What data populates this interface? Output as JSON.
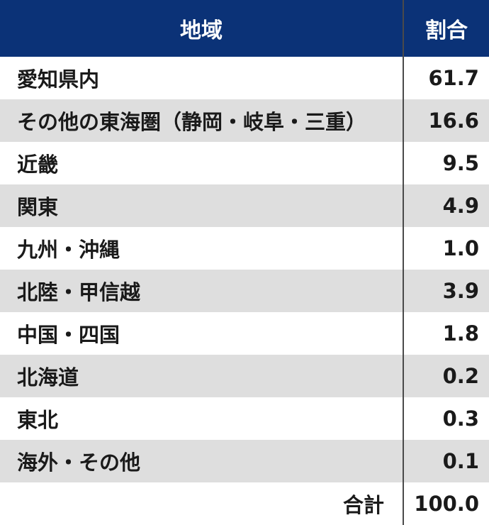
{
  "header": {
    "region": "地域",
    "share": "割合"
  },
  "rows": [
    {
      "region": "愛知県内",
      "share": "61.7"
    },
    {
      "region": "その他の東海圏（静岡・岐阜・三重）",
      "share": "16.6"
    },
    {
      "region": "近畿",
      "share": "9.5"
    },
    {
      "region": "関東",
      "share": "4.9"
    },
    {
      "region": "九州・沖縄",
      "share": "1.0"
    },
    {
      "region": "北陸・甲信越",
      "share": "3.9"
    },
    {
      "region": "中国・四国",
      "share": "1.8"
    },
    {
      "region": "北海道",
      "share": "0.2"
    },
    {
      "region": "東北",
      "share": "0.3"
    },
    {
      "region": "海外・その他",
      "share": "0.1"
    }
  ],
  "total": {
    "label": "合計",
    "share": "100.0"
  },
  "colors": {
    "header_bg": "#0b3277",
    "header_text": "#ffffff",
    "stripe": "#dedede"
  }
}
